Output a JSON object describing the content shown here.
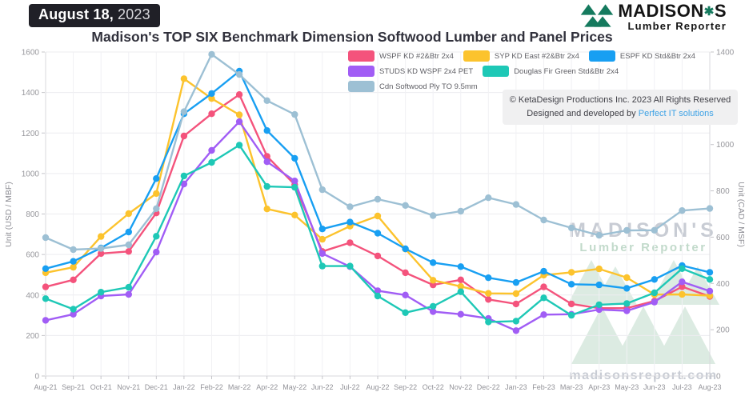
{
  "header": {
    "date_badge": {
      "date": "August 18,",
      "year": "2023",
      "bg_color": "#202027"
    },
    "title": "Madison's TOP SIX Benchmark Dimension Softwood Lumber and Panel Prices",
    "logo": {
      "name": "MADISON'S",
      "tagline": "Lumber Reporter",
      "green": "#157a5e"
    }
  },
  "overlays": {
    "copyright": {
      "line1": "© KetaDesign Productions Inc. 2023 All Rights Reserved",
      "line2_prefix": "Designed and developed by ",
      "link_label": "Perfect IT solutions",
      "link_color": "#3ea2e5"
    },
    "watermark": {
      "title": "MADISON'S",
      "subtitle": "Lumber Reporter",
      "site": "madisonsreport.com"
    }
  },
  "chart_data": {
    "type": "line",
    "title": "Madison's TOP SIX Benchmark Dimension Softwood Lumber and Panel Prices",
    "grid": true,
    "legend_position": "top",
    "categories": [
      "Aug-21",
      "Sep-21",
      "Oct-21",
      "Nov-21",
      "Dec-21",
      "Jan-22",
      "Feb-22",
      "Mar-22",
      "Apr-22",
      "May-22",
      "Jun-22",
      "Jul-22",
      "Aug-22",
      "Sep-22",
      "Oct-22",
      "Nov-22",
      "Dec-22",
      "Jan-23",
      "Feb-23",
      "Mar-23",
      "Apr-23",
      "May-23",
      "Jun-23",
      "Jul-23",
      "Aug-23"
    ],
    "left_axis": {
      "label": "Unit (USD / MBF)",
      "min": 0,
      "max": 1600,
      "ticks": [
        0,
        200,
        400,
        600,
        800,
        1000,
        1200,
        1400,
        1600
      ]
    },
    "right_axis": {
      "label": "Unit (CAD / MSF)",
      "min": 0,
      "max": 1400,
      "ticks": [
        0,
        200,
        400,
        600,
        800,
        1000,
        1200,
        1400
      ]
    },
    "series": [
      {
        "name": "WSPF KD #2&Btr 2x4",
        "color": "#f4537c",
        "axis": "left",
        "values": [
          440,
          475,
          605,
          615,
          805,
          1185,
          1295,
          1390,
          1085,
          945,
          615,
          658,
          593,
          510,
          450,
          475,
          378,
          356,
          440,
          356,
          335,
          335,
          370,
          441,
          393
        ]
      },
      {
        "name": "SYP KD East #2&Btr 2x4",
        "color": "#fcc32d",
        "axis": "left",
        "values": [
          510,
          537,
          689,
          802,
          901,
          1468,
          1370,
          1290,
          825,
          795,
          675,
          740,
          790,
          627,
          473,
          442,
          408,
          407,
          498,
          512,
          529,
          486,
          402,
          403,
          397
        ]
      },
      {
        "name": "ESPF KD Std&Btr 2x4",
        "color": "#189ff2",
        "axis": "left",
        "values": [
          530,
          566,
          632,
          711,
          975,
          1295,
          1395,
          1505,
          1212,
          1075,
          726,
          760,
          705,
          628,
          560,
          540,
          485,
          462,
          517,
          453,
          450,
          433,
          477,
          545,
          512
        ]
      },
      {
        "name": "STUDS KD WSPF 2x4 PET",
        "color": "#a15df5",
        "axis": "left",
        "values": [
          275,
          305,
          395,
          403,
          612,
          948,
          1114,
          1256,
          1058,
          963,
          605,
          540,
          421,
          400,
          318,
          305,
          284,
          224,
          303,
          305,
          328,
          322,
          365,
          465,
          419
        ]
      },
      {
        "name": "Douglas Fir Green Std&Btr 2x4",
        "color": "#1ec8b6",
        "axis": "left",
        "values": [
          382,
          330,
          414,
          438,
          690,
          988,
          1055,
          1140,
          936,
          932,
          543,
          543,
          395,
          313,
          344,
          416,
          267,
          271,
          386,
          300,
          352,
          358,
          411,
          530,
          477
        ]
      },
      {
        "name": "Cdn Softwood Ply TO 9.5mm",
        "color": "#9dc0d4",
        "axis": "right",
        "values": [
          598,
          546,
          551,
          567,
          723,
          1142,
          1390,
          1303,
          1190,
          1130,
          805,
          731,
          764,
          737,
          693,
          712,
          770,
          741,
          674,
          640,
          608,
          629,
          630,
          715,
          724
        ]
      }
    ]
  }
}
